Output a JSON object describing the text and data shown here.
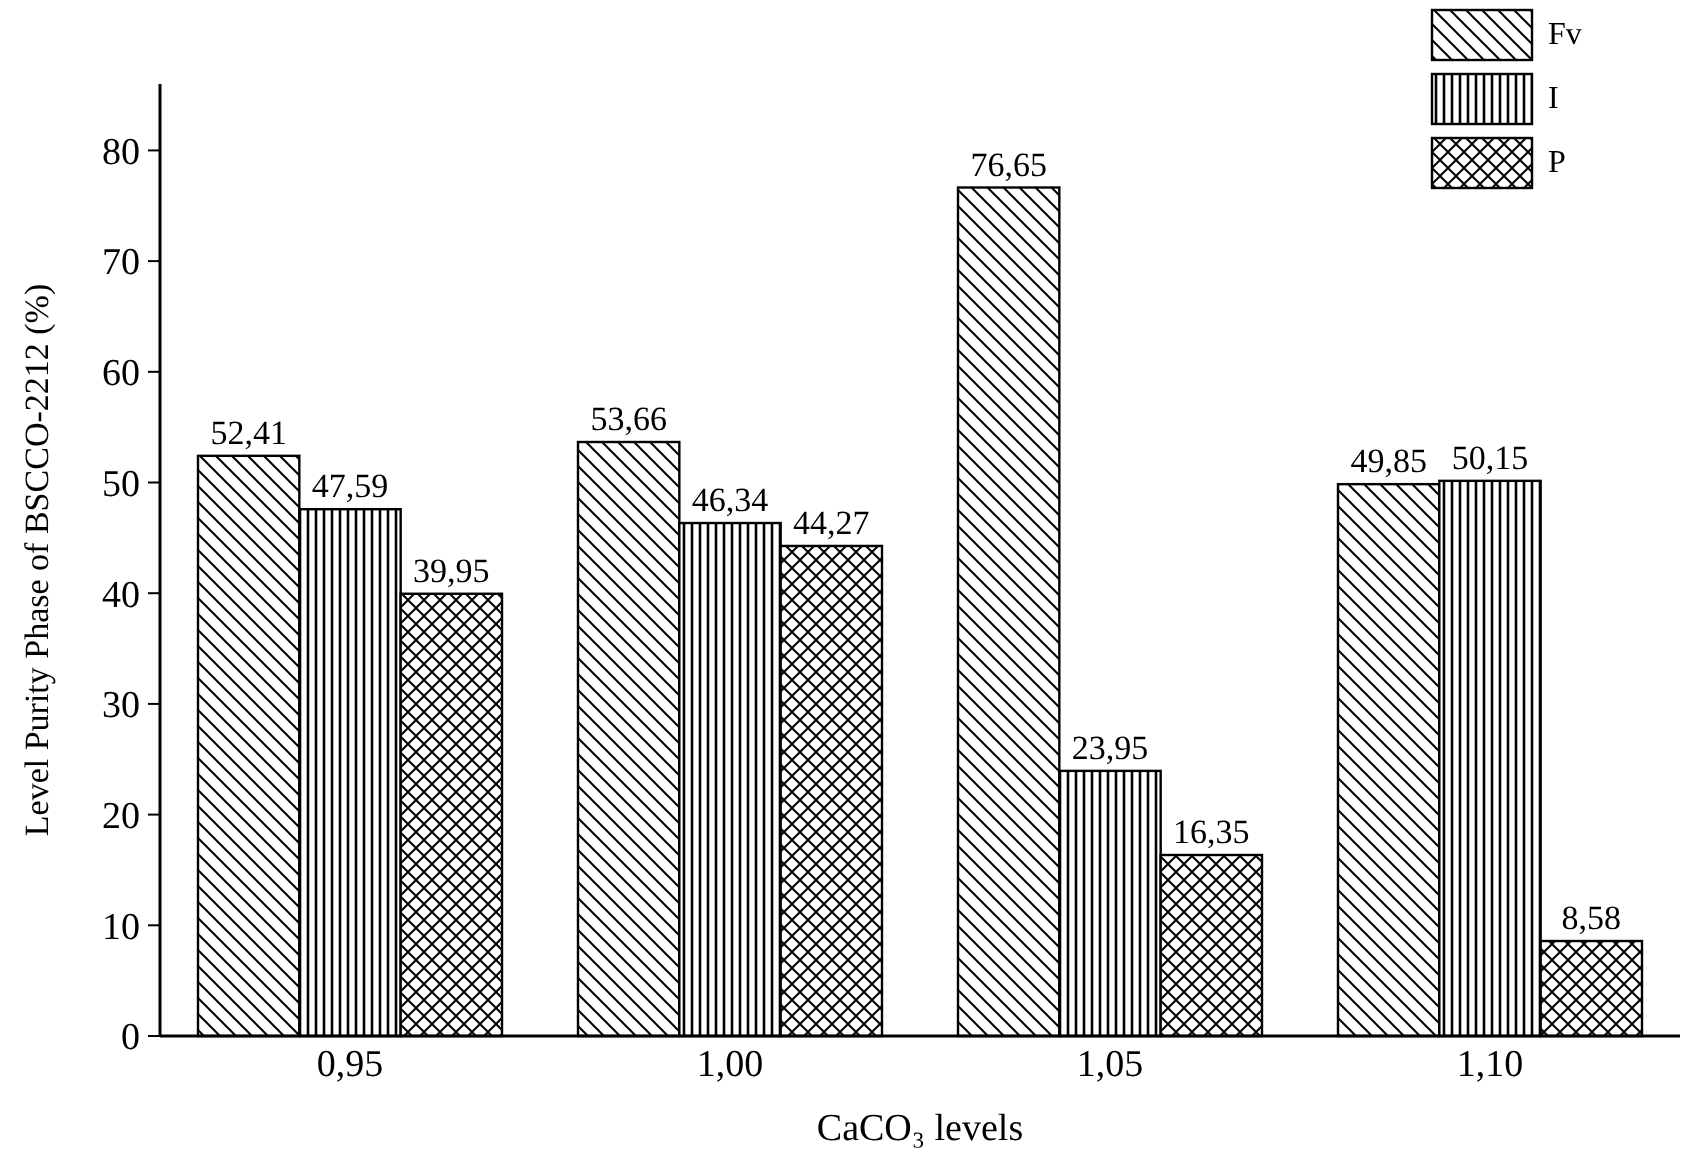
{
  "chart_data": {
    "type": "bar",
    "xlabel": "CaCO₃ levels",
    "ylabel": "Level Purity Phase of BSCCO-2212 (%)",
    "categories": [
      "0,95",
      "1,00",
      "1,05",
      "1,10"
    ],
    "series": [
      {
        "name": "Fv",
        "color": "#000000",
        "values": [
          52.41,
          53.66,
          76.65,
          49.85
        ],
        "value_labels": [
          "52,41",
          "53,66",
          "76,65",
          "49,85"
        ]
      },
      {
        "name": "I",
        "color": "#000000",
        "values": [
          47.59,
          46.34,
          23.95,
          50.15
        ],
        "value_labels": [
          "47,59",
          "46,34",
          "23,95",
          "50,15"
        ]
      },
      {
        "name": "P",
        "color": "#000000",
        "values": [
          39.95,
          44.27,
          16.35,
          8.58
        ],
        "value_labels": [
          "39,95",
          "44,27",
          "16,35",
          "8,58"
        ]
      }
    ],
    "ylim": [
      0,
      86
    ],
    "yticks": [
      0,
      10,
      20,
      30,
      40,
      50,
      60,
      70,
      80
    ],
    "grid": false,
    "legend": "top right"
  }
}
